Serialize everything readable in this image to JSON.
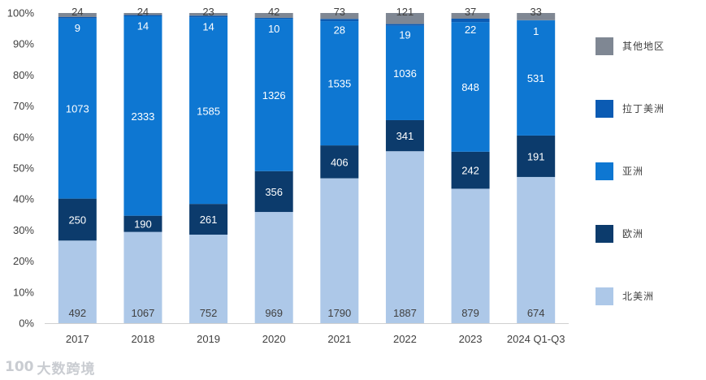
{
  "chart_data": {
    "type": "bar",
    "stacked": true,
    "normalized": true,
    "title": "",
    "xlabel": "",
    "ylabel": "",
    "ylim": [
      0,
      100
    ],
    "y_ticks": [
      "0%",
      "10%",
      "20%",
      "30%",
      "40%",
      "50%",
      "60%",
      "70%",
      "80%",
      "90%",
      "100%"
    ],
    "categories": [
      "2017",
      "2018",
      "2019",
      "2020",
      "2021",
      "2022",
      "2023",
      "2024 Q1-Q3"
    ],
    "series": [
      {
        "name": "北美洲",
        "color": "#adc8e8",
        "label_color": "#404040",
        "values": [
          492,
          1067,
          752,
          969,
          1790,
          1887,
          879,
          674
        ]
      },
      {
        "name": "欧洲",
        "color": "#0c3b6c",
        "label_color": "#ffffff",
        "values": [
          250,
          190,
          261,
          356,
          406,
          341,
          242,
          191
        ]
      },
      {
        "name": "亚洲",
        "color": "#0e77d2",
        "label_color": "#ffffff",
        "values": [
          1073,
          2333,
          1585,
          1326,
          1535,
          1036,
          848,
          531
        ]
      },
      {
        "name": "拉丁美洲",
        "color": "#0b5bb3",
        "label_color": "#ffffff",
        "values": [
          9,
          14,
          14,
          10,
          28,
          19,
          22,
          1
        ]
      },
      {
        "name": "其他地区",
        "color": "#7f8793",
        "label_color": "#404040",
        "values": [
          24,
          24,
          23,
          42,
          73,
          121,
          37,
          33
        ]
      }
    ],
    "legend_order": [
      "其他地区",
      "拉丁美洲",
      "亚洲",
      "欧洲",
      "北美洲"
    ],
    "legend_position": "right",
    "grid": false
  },
  "watermark": {
    "logo": "100",
    "text": "大数跨境"
  }
}
